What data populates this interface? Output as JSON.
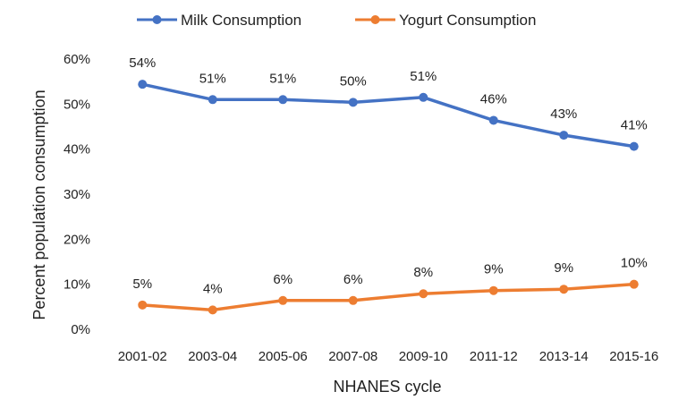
{
  "chart_data": {
    "type": "line",
    "categories": [
      "2001-02",
      "2003-04",
      "2005-06",
      "2007-08",
      "2009-10",
      "2011-12",
      "2013-14",
      "2015-16"
    ],
    "series": [
      {
        "name": "Milk Consumption",
        "color": "#4472C4",
        "values": [
          54.4,
          51.0,
          51.0,
          50.4,
          51.5,
          46.4,
          43.1,
          40.6
        ],
        "labels": [
          "54%",
          "51%",
          "51%",
          "50%",
          "51%",
          "46%",
          "43%",
          "41%"
        ]
      },
      {
        "name": "Yogurt Consumption",
        "color": "#ED7D31",
        "values": [
          5.4,
          4.3,
          6.4,
          6.4,
          7.9,
          8.6,
          8.9,
          10.0
        ],
        "labels": [
          "5%",
          "4%",
          "6%",
          "6%",
          "8%",
          "9%",
          "9%",
          "10%"
        ]
      }
    ],
    "xlabel": "NHANES cycle",
    "ylabel": "Percent population consumption",
    "ylim": [
      0,
      60
    ],
    "yticks": [
      "0%",
      "10%",
      "20%",
      "30%",
      "40%",
      "50%",
      "60%"
    ],
    "grid": false,
    "legend": "top"
  }
}
